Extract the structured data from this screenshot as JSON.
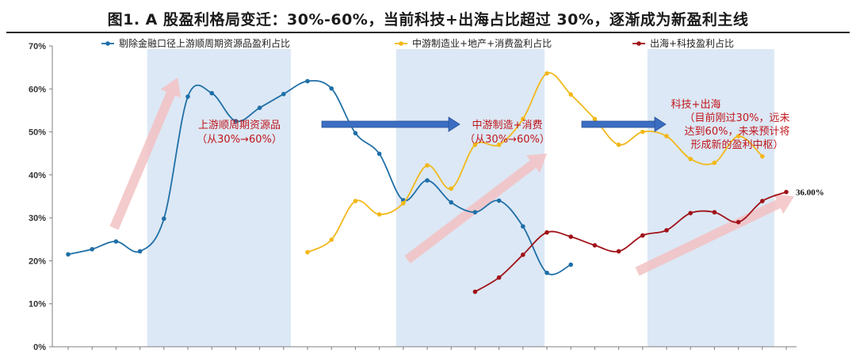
{
  "chart_data": {
    "type": "line",
    "title": "图1. A 股盈利格局变迁：30%-60%，当前科技+出海占比超过 30%，逐渐成为新盈利主线",
    "xlabel": "",
    "ylabel": "",
    "ylim": [
      0,
      0.7
    ],
    "yticks": [
      "0%",
      "10%",
      "20%",
      "30%",
      "40%",
      "50%",
      "60%",
      "70%"
    ],
    "n_points": 31,
    "grid": false,
    "legend_position": "top",
    "series": [
      {
        "name": "剔除金融口径上游顺周期资源品盈利占比",
        "color": "#1f6fa7",
        "start": 0,
        "values": [
          0.215,
          0.227,
          0.245,
          0.222,
          0.298,
          0.582,
          0.59,
          0.525,
          0.556,
          0.588,
          0.618,
          0.601,
          0.497,
          0.449,
          0.341,
          0.387,
          0.336,
          0.313,
          0.34,
          0.28,
          0.172,
          0.191
        ]
      },
      {
        "name": "中游制造业+地产+消费盈利占比",
        "color": "#f2b81a",
        "start": 10,
        "values": [
          0.22,
          0.249,
          0.339,
          0.308,
          0.334,
          0.422,
          0.368,
          0.47,
          0.47,
          0.53,
          0.636,
          0.587,
          0.53,
          0.47,
          0.5,
          0.49,
          0.437,
          0.428,
          0.49,
          0.443
        ]
      },
      {
        "name": "出海+科技盈利占比",
        "color": "#a01219",
        "start": 17,
        "values": [
          0.128,
          0.161,
          0.214,
          0.266,
          0.256,
          0.236,
          0.222,
          0.259,
          0.271,
          0.311,
          0.313,
          0.29,
          0.339,
          0.36
        ]
      }
    ],
    "end_label": "36.00%",
    "annotations": [
      {
        "lines": [
          "上游顺周期资源品",
          "（从30%→60%）"
        ]
      },
      {
        "lines": [
          "中游制造+消费",
          "（从30%→60%）"
        ]
      },
      {
        "lines": [
          "科技+出海",
          "（目前刚过30%，远未",
          "达到60%，未来预计将",
          "形成新的盈利中枢）"
        ]
      }
    ],
    "shaded_bands": [
      {
        "from": 3.3,
        "to": 9.3
      },
      {
        "from": 13.7,
        "to": 19.9
      },
      {
        "from": 24.2,
        "to": 29.5
      }
    ],
    "colors": {
      "band": "#dce8f5",
      "big_arrow": "#f3c2c4",
      "flow_arrow": "#3b6ec2",
      "annotation": "#c0161c"
    }
  }
}
